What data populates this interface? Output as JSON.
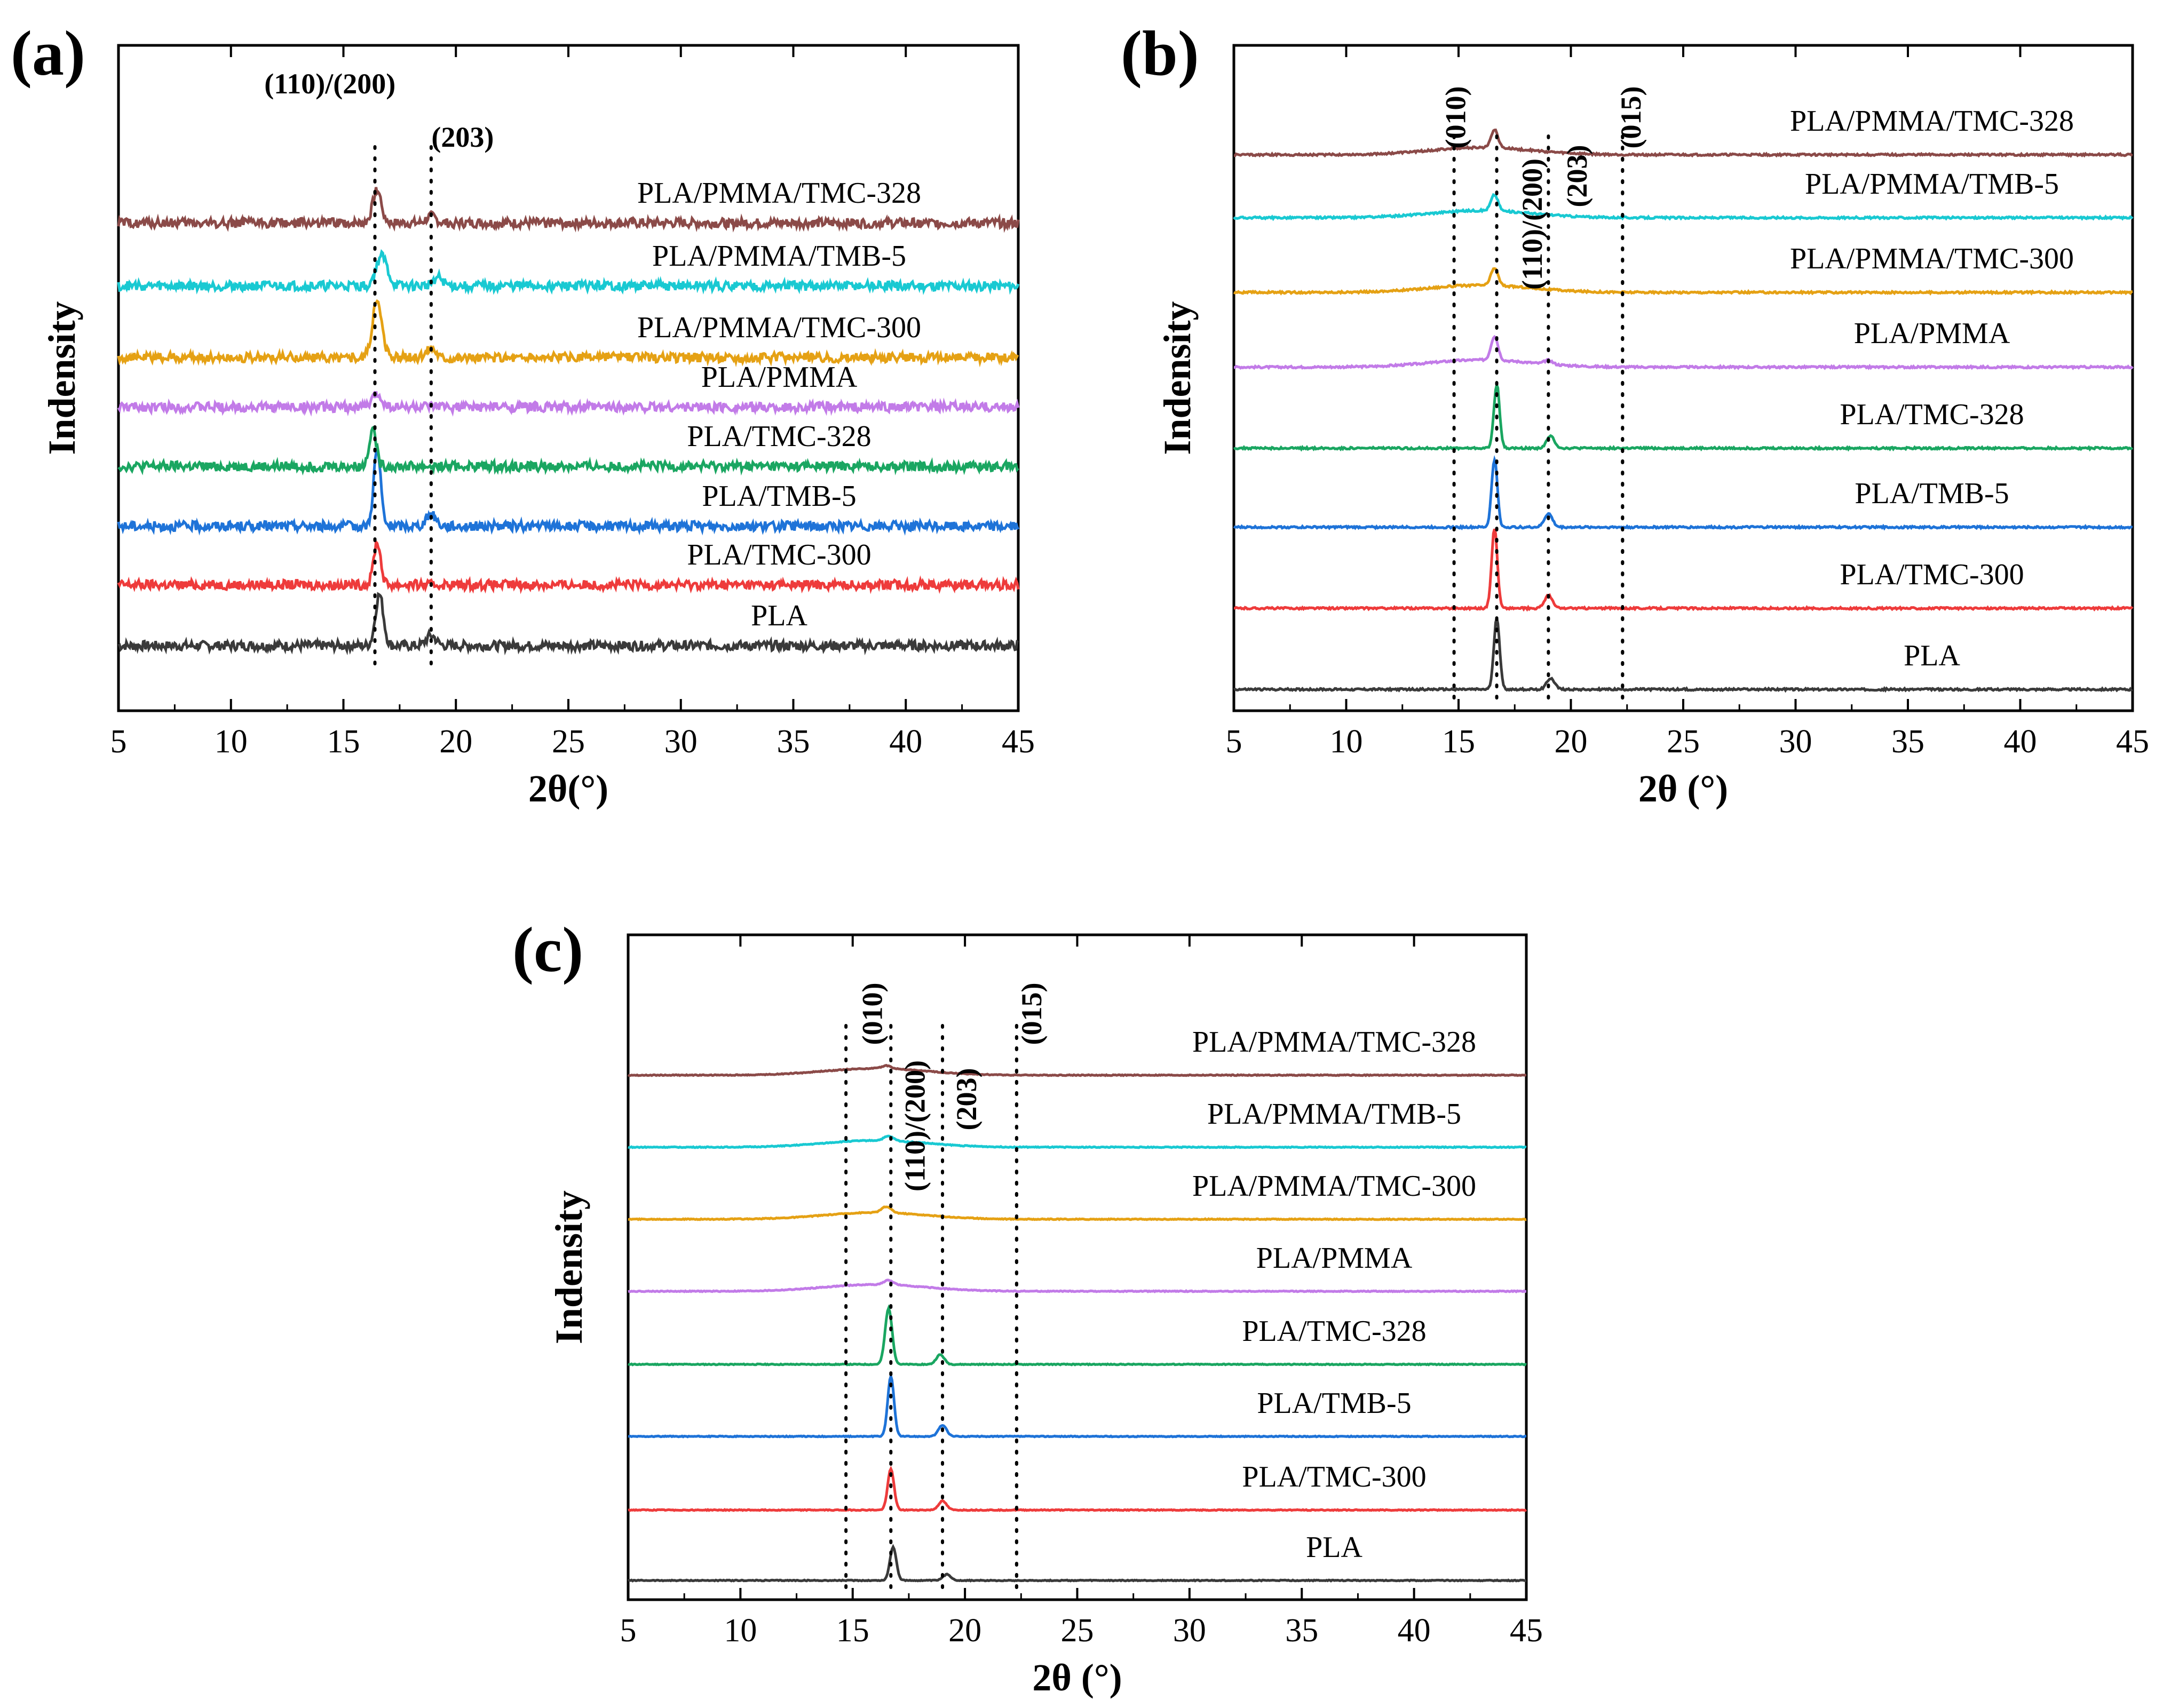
{
  "colors": {
    "PLA": "#3a3a3a",
    "PLA/TMC-300": "#ee3b3b",
    "PLA/TMB-5": "#1e73d8",
    "PLA/TMC-328": "#1aa661",
    "PLA/PMMA": "#c27be8",
    "PLA/PMMA/TMC-300": "#e5a114",
    "PLA/PMMA/TMB-5": "#19c9d2",
    "PLA/PMMA/TMC-328": "#8b4a48"
  },
  "chart_data": [
    {
      "panel": "(a)",
      "type": "line",
      "xlabel": "2θ(°)",
      "ylabel": "Indensity",
      "xlim": [
        5,
        45
      ],
      "xticks": [
        "5",
        "10",
        "15",
        "20",
        "25",
        "30",
        "35",
        "40",
        "45"
      ],
      "noise": 0.55,
      "peak_lines": [
        {
          "x": 16.4,
          "label": "(110)/(200)",
          "label_x": 14.4,
          "vertical": false
        },
        {
          "x": 18.9,
          "label": "(203)",
          "label_x": 20.3,
          "vertical": false
        }
      ],
      "series": [
        {
          "name": "PLA",
          "peaks": [
            {
              "x": 16.6,
              "h": 6,
              "w": 0.25
            },
            {
              "x": 18.9,
              "h": 1.2,
              "w": 0.3
            }
          ]
        },
        {
          "name": "PLA/TMC-300",
          "peaks": [
            {
              "x": 16.5,
              "h": 5,
              "w": 0.22
            }
          ]
        },
        {
          "name": "PLA/TMB-5",
          "peaks": [
            {
              "x": 16.5,
              "h": 9,
              "w": 0.22
            },
            {
              "x": 18.9,
              "h": 1.4,
              "w": 0.3
            }
          ]
        },
        {
          "name": "PLA/TMC-328",
          "peaks": [
            {
              "x": 16.3,
              "h": 4.5,
              "w": 0.22
            }
          ]
        },
        {
          "name": "PLA/PMMA",
          "peaks": [
            {
              "x": 16.5,
              "h": 1.5,
              "w": 0.3
            }
          ]
        },
        {
          "name": "PLA/PMMA/TMC-300",
          "peaks": [
            {
              "x": 16.5,
              "h": 6.5,
              "w": 0.3
            },
            {
              "x": 18.9,
              "h": 1.2,
              "w": 0.3
            }
          ]
        },
        {
          "name": "PLA/PMMA/TMB-5",
          "peaks": [
            {
              "x": 16.7,
              "h": 3.5,
              "w": 0.35
            },
            {
              "x": 19.2,
              "h": 1,
              "w": 0.3
            }
          ]
        },
        {
          "name": "PLA/PMMA/TMC-328",
          "peaks": [
            {
              "x": 16.5,
              "h": 3.8,
              "w": 0.28
            },
            {
              "x": 18.9,
              "h": 0.8,
              "w": 0.3
            }
          ]
        }
      ]
    },
    {
      "panel": "(b)",
      "type": "line",
      "xlabel": "2θ (°)",
      "ylabel": "Indensity",
      "xlim": [
        5,
        45
      ],
      "xticks": [
        "5",
        "10",
        "15",
        "20",
        "25",
        "30",
        "35",
        "40",
        "45"
      ],
      "noise": 0.12,
      "peak_lines": [
        {
          "x": 14.8,
          "label": "(010)",
          "label_x": 15.3,
          "vertical": true
        },
        {
          "x": 19.0,
          "label": "(110)/(200)",
          "label_x": 18.7,
          "vertical": true
        },
        {
          "x": 22.3,
          "label": "(203)",
          "label_x": 20.7,
          "vertical": true
        },
        {
          "x": 16.7,
          "label": "",
          "label_x": 16.7,
          "vertical": true
        },
        {
          "x": 22.3,
          "label": "(015)",
          "label_x": 23.1,
          "vertical": true
        }
      ],
      "series": [
        {
          "name": "PLA",
          "peaks": [
            {
              "x": 16.7,
              "h": 9,
              "w": 0.18
            },
            {
              "x": 19.1,
              "h": 1.4,
              "w": 0.25
            }
          ]
        },
        {
          "name": "PLA/TMC-300",
          "peaks": [
            {
              "x": 16.6,
              "h": 10,
              "w": 0.18
            },
            {
              "x": 19.0,
              "h": 1.6,
              "w": 0.25
            }
          ]
        },
        {
          "name": "PLA/TMB-5",
          "peaks": [
            {
              "x": 16.6,
              "h": 8.5,
              "w": 0.18
            },
            {
              "x": 19.0,
              "h": 1.7,
              "w": 0.25
            }
          ]
        },
        {
          "name": "PLA/TMC-328",
          "peaks": [
            {
              "x": 16.7,
              "h": 8,
              "w": 0.18
            },
            {
              "x": 19.1,
              "h": 1.5,
              "w": 0.25
            }
          ]
        },
        {
          "name": "PLA/PMMA",
          "peaks": [
            {
              "x": 16.6,
              "h": 3,
              "w": 0.22
            },
            {
              "x": 19.0,
              "h": 0.5,
              "w": 0.25
            }
          ]
        },
        {
          "name": "PLA/PMMA/TMC-300",
          "peaks": [
            {
              "x": 16.6,
              "h": 2.2,
              "w": 0.22
            }
          ]
        },
        {
          "name": "PLA/PMMA/TMB-5",
          "peaks": [
            {
              "x": 16.6,
              "h": 2,
              "w": 0.22
            }
          ]
        },
        {
          "name": "PLA/PMMA/TMC-328",
          "peaks": [
            {
              "x": 16.6,
              "h": 2.3,
              "w": 0.22
            }
          ]
        }
      ]
    },
    {
      "panel": "(c)",
      "type": "line",
      "xlabel": "2θ (°)",
      "ylabel": "Indensity",
      "xlim": [
        5,
        45
      ],
      "xticks": [
        "5",
        "10",
        "15",
        "20",
        "25",
        "30",
        "35",
        "40",
        "45"
      ],
      "noise": 0.06,
      "peak_lines": [
        {
          "x": 14.7,
          "label": "",
          "label_x": 14.7,
          "vertical": true
        },
        {
          "x": 16.7,
          "label": "(010)",
          "label_x": 16.3,
          "vertical": true
        },
        {
          "x": 19.0,
          "label": "(110)/(200)",
          "label_x": 18.2,
          "vertical": true
        },
        {
          "x": 22.3,
          "label": "(203)",
          "label_x": 20.5,
          "vertical": true
        },
        {
          "x": 22.3,
          "label": "(015)",
          "label_x": 23.4,
          "vertical": true
        }
      ],
      "series": [
        {
          "name": "PLA",
          "peaks": [
            {
              "x": 16.8,
              "h": 4.5,
              "w": 0.2
            },
            {
              "x": 19.2,
              "h": 0.8,
              "w": 0.25
            }
          ]
        },
        {
          "name": "PLA/TMC-300",
          "peaks": [
            {
              "x": 16.7,
              "h": 5.5,
              "w": 0.2
            },
            {
              "x": 19.0,
              "h": 1.2,
              "w": 0.25
            }
          ]
        },
        {
          "name": "PLA/TMB-5",
          "peaks": [
            {
              "x": 16.7,
              "h": 8,
              "w": 0.2
            },
            {
              "x": 19.0,
              "h": 1.5,
              "w": 0.25
            }
          ]
        },
        {
          "name": "PLA/TMC-328",
          "peaks": [
            {
              "x": 16.6,
              "h": 7.5,
              "w": 0.22
            },
            {
              "x": 18.9,
              "h": 1.3,
              "w": 0.25
            }
          ]
        },
        {
          "name": "PLA/PMMA",
          "peaks": [
            {
              "x": 16.6,
              "h": 0.6,
              "w": 0.3
            }
          ]
        },
        {
          "name": "PLA/PMMA/TMC-300",
          "peaks": [
            {
              "x": 16.5,
              "h": 0.8,
              "w": 0.3
            }
          ]
        },
        {
          "name": "PLA/PMMA/TMB-5",
          "peaks": [
            {
              "x": 16.6,
              "h": 0.6,
              "w": 0.3
            }
          ]
        },
        {
          "name": "PLA/PMMA/TMC-328",
          "peaks": [
            {
              "x": 16.5,
              "h": 0.4,
              "w": 0.3
            }
          ]
        }
      ]
    }
  ]
}
